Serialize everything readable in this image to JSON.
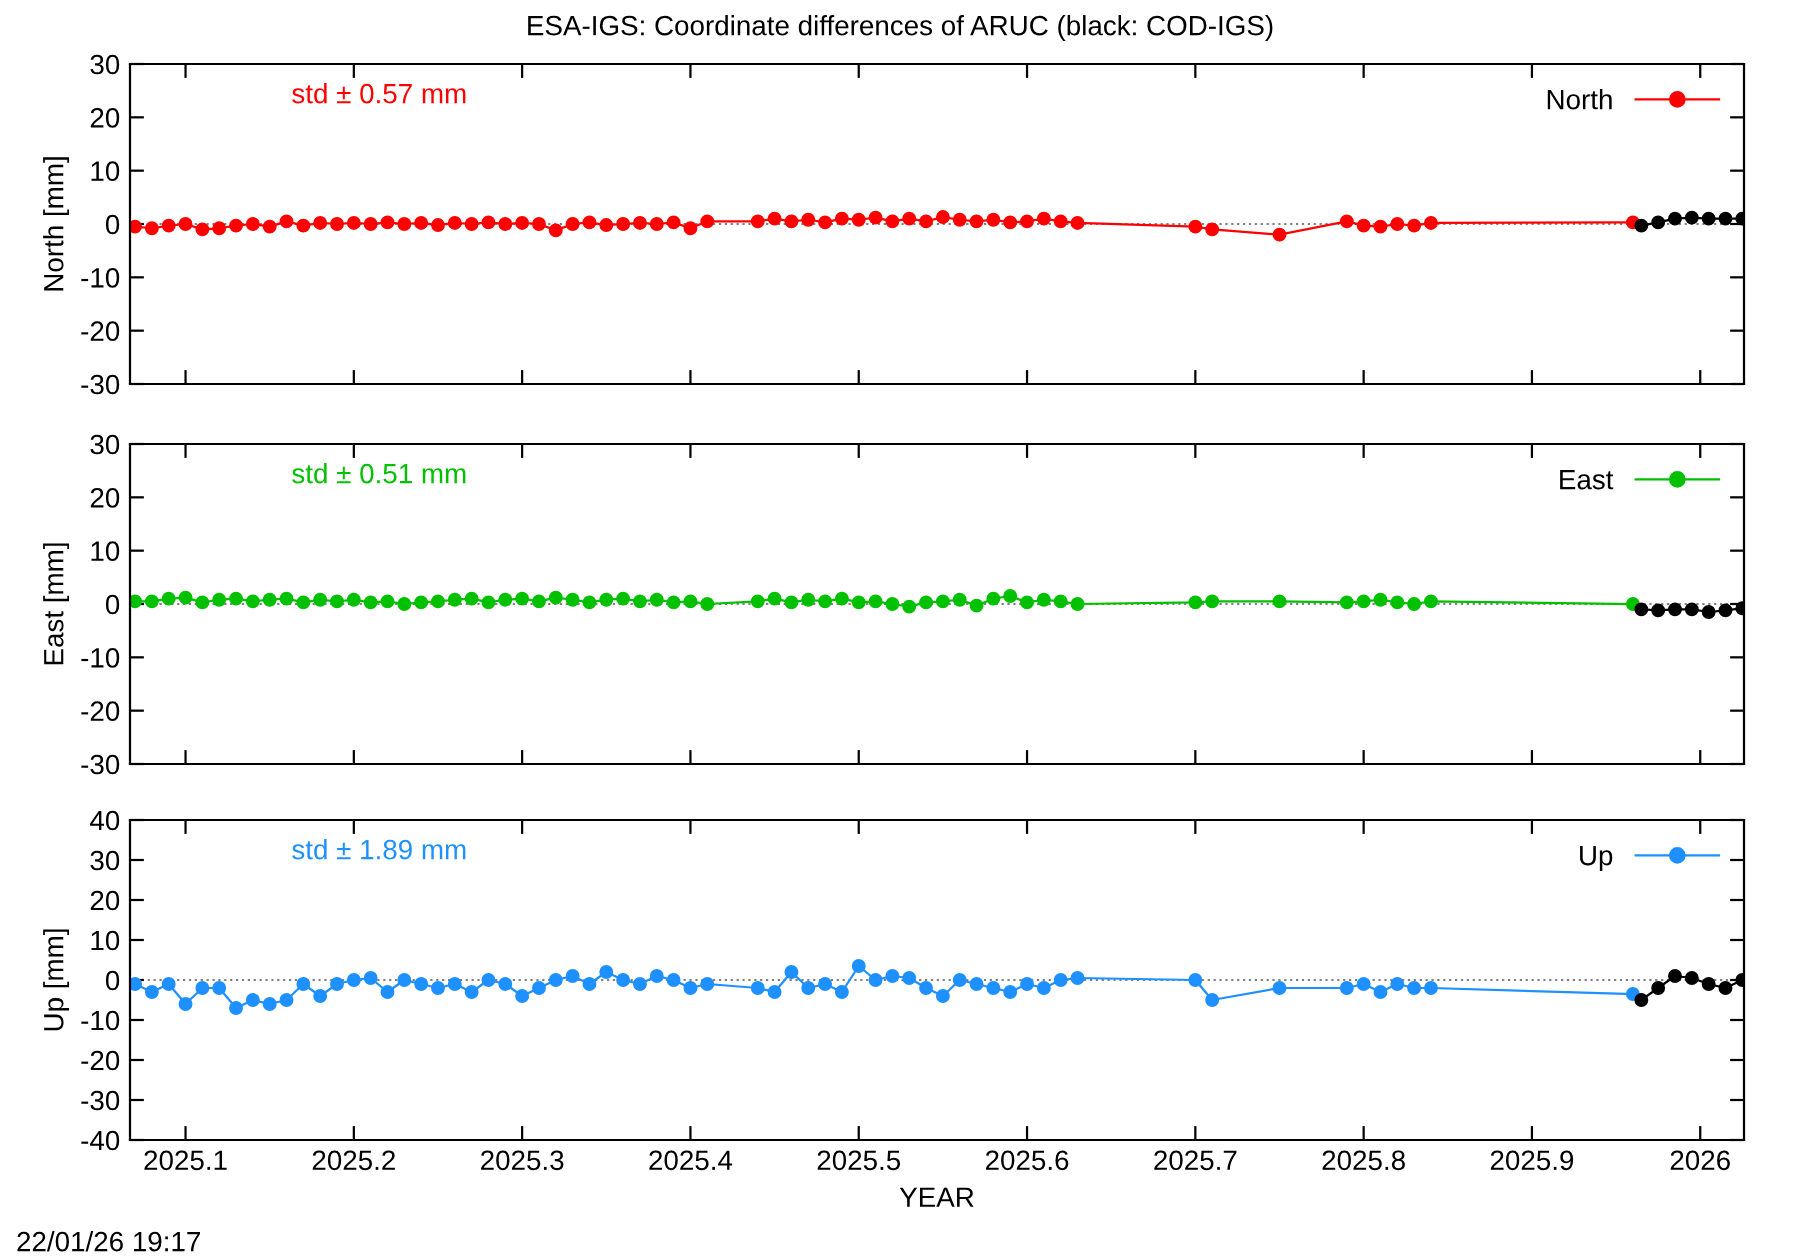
{
  "chart_data": [
    {
      "type": "line",
      "title": "ESA-IGS: Coordinate differences of ARUC (black: COD-IGS)",
      "ylabel": "North [mm]",
      "annotations": [
        "std ± 0.57 mm"
      ],
      "marker": "circle",
      "legend": "top right",
      "grid": false,
      "tick_labels": "y",
      "xlim": [
        2025.067,
        2026.026
      ],
      "xticks": [
        2025.1,
        2025.2,
        2025.3,
        2025.4,
        2025.5,
        2025.6,
        2025.7,
        2025.8,
        2025.9,
        2026
      ],
      "ylim": [
        -30,
        30
      ],
      "yticks": [
        -30,
        -20,
        -10,
        0,
        10,
        20,
        30
      ],
      "ref_lines": [
        {
          "axis": "y",
          "value": 0,
          "color": "#808080",
          "line_style": "dotted"
        }
      ],
      "x": [
        2025.07,
        2025.08,
        2025.09,
        2025.1,
        2025.11,
        2025.12,
        2025.13,
        2025.14,
        2025.15,
        2025.16,
        2025.17,
        2025.18,
        2025.19,
        2025.2,
        2025.21,
        2025.22,
        2025.23,
        2025.24,
        2025.25,
        2025.26,
        2025.27,
        2025.28,
        2025.29,
        2025.3,
        2025.31,
        2025.32,
        2025.33,
        2025.34,
        2025.35,
        2025.36,
        2025.37,
        2025.38,
        2025.39,
        2025.4,
        2025.41,
        2025.44,
        2025.45,
        2025.46,
        2025.47,
        2025.48,
        2025.49,
        2025.5,
        2025.51,
        2025.52,
        2025.53,
        2025.54,
        2025.55,
        2025.56,
        2025.57,
        2025.58,
        2025.59,
        2025.6,
        2025.61,
        2025.62,
        2025.63,
        2025.7,
        2025.71,
        2025.75,
        2025.79,
        2025.8,
        2025.81,
        2025.82,
        2025.83,
        2025.84,
        2025.96
      ],
      "series": [
        {
          "name": "North",
          "color": "#ff0000",
          "values": [
            -0.5,
            -0.8,
            -0.3,
            0,
            -1,
            -0.8,
            -0.3,
            0,
            -0.5,
            0.5,
            -0.3,
            0.2,
            0,
            0.2,
            0,
            0.3,
            0,
            0.2,
            -0.2,
            0.2,
            0,
            0.3,
            0,
            0.2,
            0,
            -1.2,
            0,
            0.3,
            -0.2,
            0,
            0.2,
            0,
            0.3,
            -0.8,
            0.5,
            0.5,
            1,
            0.5,
            0.8,
            0.3,
            1,
            0.8,
            1.2,
            0.5,
            1,
            0.5,
            1.3,
            0.8,
            0.5,
            0.8,
            0.3,
            0.5,
            1,
            0.5,
            0.2,
            -0.5,
            -1,
            -2,
            0.5,
            -0.3,
            -0.5,
            0,
            -0.3,
            0.2,
            0.3
          ]
        },
        {
          "color": "#000000",
          "x": [
            2025.965,
            2025.975,
            2025.985,
            2025.995,
            2026.005,
            2026.015,
            2026.025
          ],
          "values": [
            -0.3,
            0.3,
            1,
            1.2,
            1,
            1,
            1
          ]
        }
      ]
    },
    {
      "type": "line",
      "ylabel": "East [mm]",
      "annotations": [
        "std ± 0.51 mm"
      ],
      "marker": "circle",
      "legend": "top right",
      "grid": false,
      "tick_labels": "y",
      "xlim": [
        2025.067,
        2026.026
      ],
      "xticks": [
        2025.1,
        2025.2,
        2025.3,
        2025.4,
        2025.5,
        2025.6,
        2025.7,
        2025.8,
        2025.9,
        2026
      ],
      "ylim": [
        -30,
        30
      ],
      "yticks": [
        -30,
        -20,
        -10,
        0,
        10,
        20,
        30
      ],
      "ref_lines": [
        {
          "axis": "y",
          "value": 0,
          "color": "#808080",
          "line_style": "dotted"
        }
      ],
      "x": [
        2025.07,
        2025.08,
        2025.09,
        2025.1,
        2025.11,
        2025.12,
        2025.13,
        2025.14,
        2025.15,
        2025.16,
        2025.17,
        2025.18,
        2025.19,
        2025.2,
        2025.21,
        2025.22,
        2025.23,
        2025.24,
        2025.25,
        2025.26,
        2025.27,
        2025.28,
        2025.29,
        2025.3,
        2025.31,
        2025.32,
        2025.33,
        2025.34,
        2025.35,
        2025.36,
        2025.37,
        2025.38,
        2025.39,
        2025.4,
        2025.41,
        2025.44,
        2025.45,
        2025.46,
        2025.47,
        2025.48,
        2025.49,
        2025.5,
        2025.51,
        2025.52,
        2025.53,
        2025.54,
        2025.55,
        2025.56,
        2025.57,
        2025.58,
        2025.59,
        2025.6,
        2025.61,
        2025.62,
        2025.63,
        2025.7,
        2025.71,
        2025.75,
        2025.79,
        2025.8,
        2025.81,
        2025.82,
        2025.83,
        2025.84,
        2025.96
      ],
      "series": [
        {
          "name": "East",
          "color": "#00c000",
          "values": [
            0.5,
            0.5,
            1,
            1.2,
            0.3,
            0.8,
            1,
            0.5,
            0.8,
            1,
            0.3,
            0.8,
            0.5,
            0.8,
            0.3,
            0.5,
            0,
            0.3,
            0.5,
            0.8,
            1,
            0.3,
            0.8,
            1,
            0.5,
            1.2,
            0.8,
            0.3,
            0.8,
            1,
            0.5,
            0.8,
            0.3,
            0.5,
            0,
            0.5,
            1,
            0.3,
            0.8,
            0.5,
            1,
            0.3,
            0.5,
            0,
            -0.5,
            0.3,
            0.5,
            0.8,
            -0.3,
            1,
            1.5,
            0.3,
            0.8,
            0.5,
            0,
            0.3,
            0.5,
            0.5,
            0.3,
            0.5,
            0.8,
            0.3,
            0,
            0.5,
            0
          ]
        },
        {
          "color": "#000000",
          "x": [
            2025.965,
            2025.975,
            2025.985,
            2025.995,
            2026.005,
            2026.015,
            2026.025
          ],
          "values": [
            -1,
            -1.2,
            -1,
            -1,
            -1.5,
            -1.2,
            -0.8
          ]
        }
      ]
    },
    {
      "type": "line",
      "ylabel": "Up [mm]",
      "xlabel": "YEAR",
      "annotations": [
        "std ± 1.89 mm",
        "22/01/26 19:17"
      ],
      "marker": "circle",
      "legend": "top right",
      "grid": false,
      "xlim": [
        2025.067,
        2026.026
      ],
      "xticks": [
        2025.1,
        2025.2,
        2025.3,
        2025.4,
        2025.5,
        2025.6,
        2025.7,
        2025.8,
        2025.9,
        2026
      ],
      "ylim": [
        -40,
        40
      ],
      "yticks": [
        -40,
        -30,
        -20,
        -10,
        0,
        10,
        20,
        30,
        40
      ],
      "ref_lines": [
        {
          "axis": "y",
          "value": 0,
          "color": "#808080",
          "line_style": "dotted"
        }
      ],
      "x": [
        2025.07,
        2025.08,
        2025.09,
        2025.1,
        2025.11,
        2025.12,
        2025.13,
        2025.14,
        2025.15,
        2025.16,
        2025.17,
        2025.18,
        2025.19,
        2025.2,
        2025.21,
        2025.22,
        2025.23,
        2025.24,
        2025.25,
        2025.26,
        2025.27,
        2025.28,
        2025.29,
        2025.3,
        2025.31,
        2025.32,
        2025.33,
        2025.34,
        2025.35,
        2025.36,
        2025.37,
        2025.38,
        2025.39,
        2025.4,
        2025.41,
        2025.44,
        2025.45,
        2025.46,
        2025.47,
        2025.48,
        2025.49,
        2025.5,
        2025.51,
        2025.52,
        2025.53,
        2025.54,
        2025.55,
        2025.56,
        2025.57,
        2025.58,
        2025.59,
        2025.6,
        2025.61,
        2025.62,
        2025.63,
        2025.7,
        2025.71,
        2025.75,
        2025.79,
        2025.8,
        2025.81,
        2025.82,
        2025.83,
        2025.84,
        2025.96
      ],
      "series": [
        {
          "name": "Up",
          "color": "#1e90ff",
          "values": [
            -1,
            -3,
            -1,
            -6,
            -2,
            -2,
            -7,
            -5,
            -6,
            -5,
            -1,
            -4,
            -1,
            0,
            0.5,
            -3,
            0,
            -1,
            -2,
            -1,
            -3,
            0,
            -1,
            -4,
            -2,
            0,
            1,
            -1,
            2,
            0,
            -1,
            1,
            0,
            -2,
            -1,
            -2,
            -3,
            2,
            -2,
            -1,
            -3,
            3.5,
            0,
            1,
            0.5,
            -2,
            -4,
            0,
            -1,
            -2,
            -3,
            -1,
            -2,
            0,
            0.5,
            0,
            -5,
            -2,
            -2,
            -1,
            -3,
            -1,
            -2,
            -2,
            -3.5
          ]
        },
        {
          "color": "#000000",
          "x": [
            2025.965,
            2025.975,
            2025.985,
            2025.995,
            2026.005,
            2026.015,
            2026.025
          ],
          "values": [
            -5,
            -2,
            1,
            0.5,
            -1,
            -2,
            0
          ]
        }
      ]
    }
  ]
}
